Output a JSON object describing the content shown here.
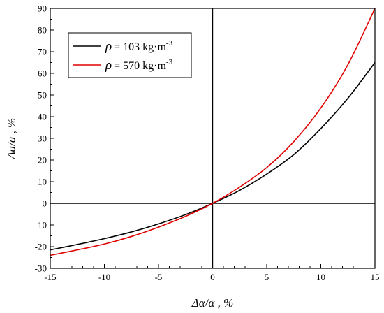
{
  "chart_data": {
    "type": "line",
    "title": "",
    "xlabel": "Δα/α , %",
    "ylabel": "Δa/a , %",
    "xlim": [
      -15,
      15
    ],
    "ylim": [
      -30,
      90
    ],
    "x_ticks": [
      -15,
      -10,
      -5,
      0,
      5,
      10,
      15
    ],
    "y_ticks": [
      -30,
      -20,
      -10,
      0,
      10,
      20,
      30,
      40,
      50,
      60,
      70,
      80,
      90
    ],
    "grid": false,
    "zero_lines": true,
    "legend": {
      "position": "top-left",
      "entries": [
        {
          "symbol": "ρ",
          "text": "= 103 kg·m",
          "exp": "-3",
          "color": "#000000"
        },
        {
          "symbol": "ρ",
          "text": "= 570 kg·m",
          "exp": "-3",
          "color": "#e00000"
        }
      ]
    },
    "series": [
      {
        "color": "#000000",
        "x": [
          -15,
          -12.5,
          -10,
          -7.5,
          -5,
          -2.5,
          0,
          2.5,
          5,
          7.5,
          10,
          12.5,
          15
        ],
        "y": [
          -21.5,
          -19.0,
          -16.3,
          -13.2,
          -9.5,
          -5.2,
          0,
          6.0,
          13.5,
          22.5,
          34.5,
          48.5,
          65.0
        ]
      },
      {
        "color": "#e00000",
        "x": [
          -15,
          -12.5,
          -10,
          -7.5,
          -5,
          -2.5,
          0,
          2.5,
          5,
          7.5,
          10,
          12.5,
          15
        ],
        "y": [
          -24.0,
          -21.5,
          -18.8,
          -15.3,
          -11.0,
          -6.0,
          0,
          7.5,
          16.5,
          28.5,
          44.0,
          64.0,
          90.0
        ]
      }
    ]
  }
}
